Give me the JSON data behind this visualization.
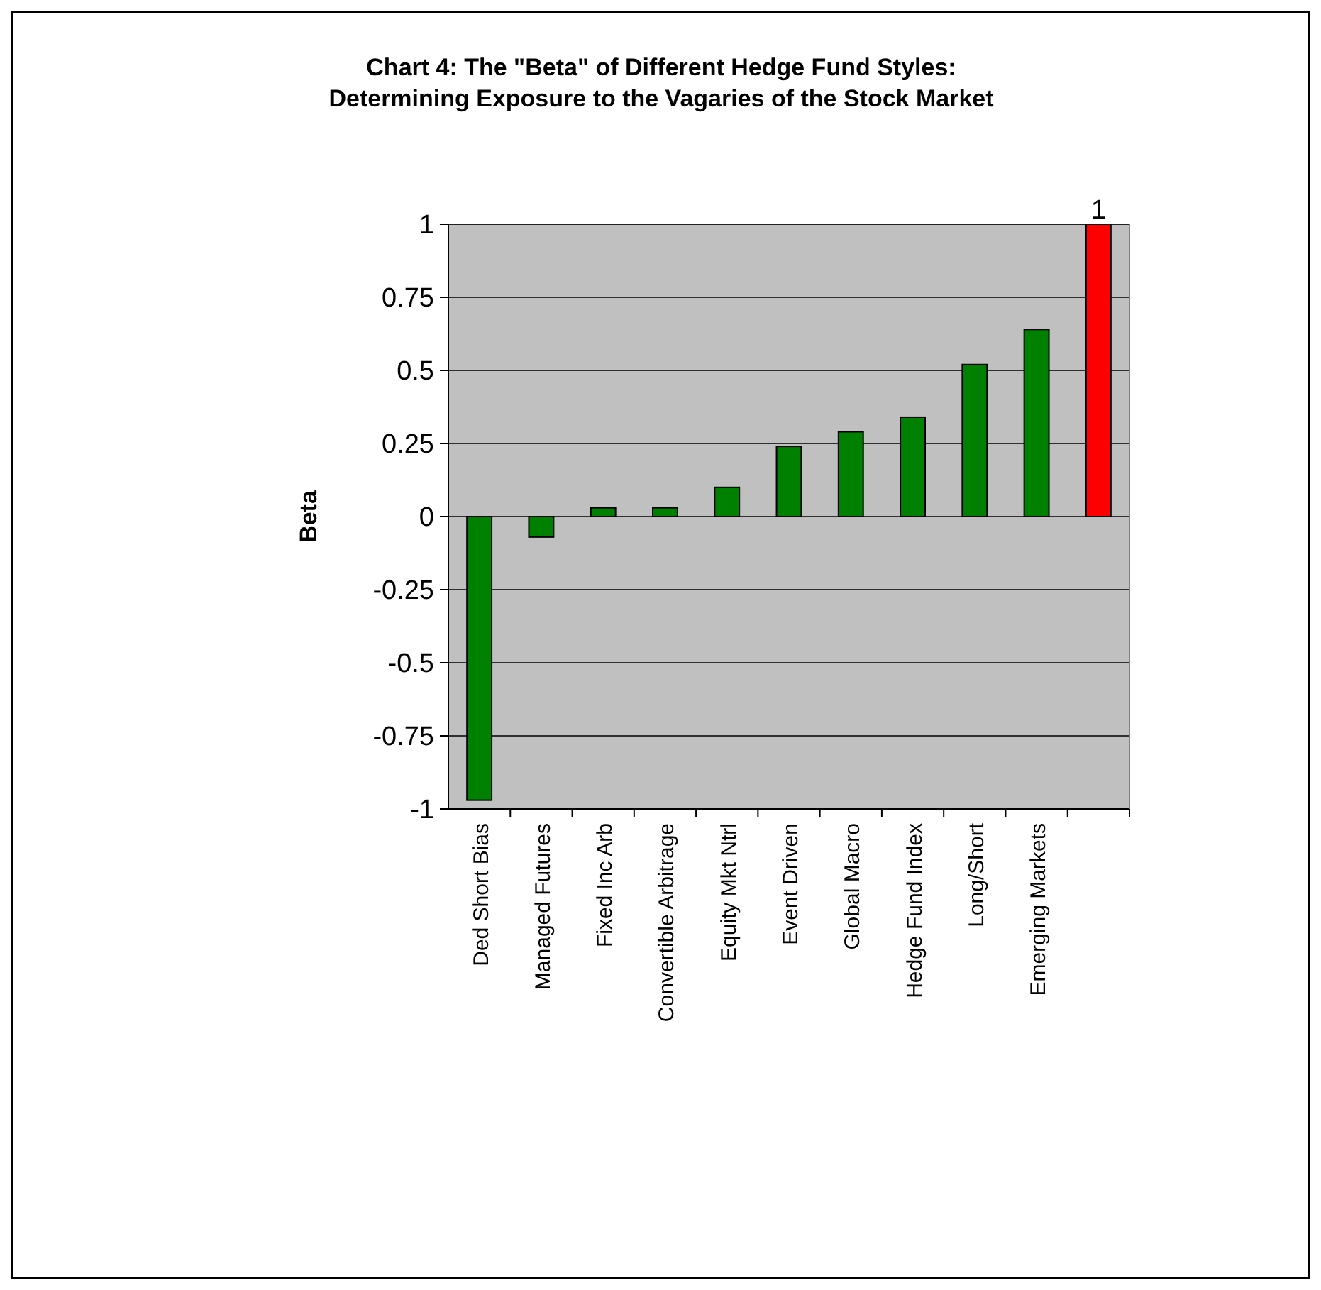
{
  "chart_data": {
    "type": "bar",
    "title": "Chart 4: The \"Beta\" of Different Hedge Fund Styles: Determining Exposure to the Vagaries of the Stock Market",
    "ylabel": "Beta",
    "categories": [
      "Ded Short Bias",
      "Managed Futures",
      "Fixed Inc Arb",
      "Convertible Arbitrage",
      "Equity Mkt Ntrl",
      "Event Driven",
      "Global Macro",
      "Hedge Fund Index",
      "Long/Short",
      "Emerging Markets",
      null
    ],
    "values": [
      -0.97,
      -0.07,
      0.03,
      0.03,
      0.1,
      0.24,
      0.29,
      0.34,
      0.52,
      0.64,
      1
    ],
    "colors": [
      "#008000",
      "#008000",
      "#008000",
      "#008000",
      "#008000",
      "#008000",
      "#008000",
      "#008000",
      "#008000",
      "#008000",
      "#ff0000"
    ],
    "value_labels": [
      null,
      null,
      null,
      null,
      null,
      null,
      null,
      null,
      null,
      null,
      "1"
    ],
    "ylim": [
      -1,
      1
    ],
    "yticks": [
      -1,
      -0.75,
      -0.5,
      -0.25,
      0,
      0.25,
      0.5,
      0.75,
      1
    ],
    "grid": "y"
  }
}
